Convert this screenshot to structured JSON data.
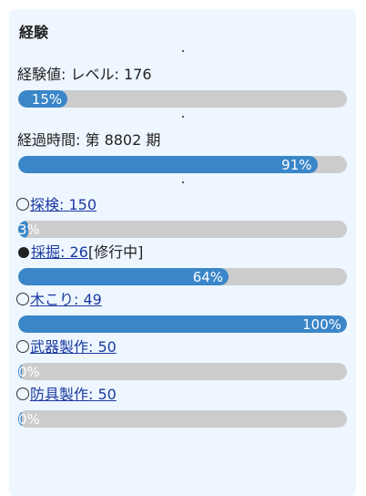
{
  "section": {
    "title": "経験"
  },
  "experience": {
    "label": "経験値: レベル: 176",
    "progress": {
      "percent": 15,
      "text": "15%"
    }
  },
  "elapsed": {
    "label": "経過時間: 第 8802 期",
    "progress": {
      "percent": 91,
      "text": "91%"
    }
  },
  "skills": [
    {
      "name": "探検: 150",
      "status": "",
      "selected": false,
      "percent": 3,
      "text": "3%"
    },
    {
      "name": "採掘: 26",
      "status": "[修行中]",
      "selected": true,
      "percent": 64,
      "text": "64%"
    },
    {
      "name": "木こり: 49",
      "status": "",
      "selected": false,
      "percent": 100,
      "text": "100%"
    },
    {
      "name": "武器製作: 50",
      "status": "",
      "selected": false,
      "percent": 0,
      "text": "0%"
    },
    {
      "name": "防具製作: 50",
      "status": "",
      "selected": false,
      "percent": 0,
      "text": "0%"
    }
  ],
  "colors": {
    "panel_bg": "#eef6ff",
    "bar_fill": "#3a86c8",
    "bar_track": "#cccccc",
    "link": "#1a3aa0"
  }
}
